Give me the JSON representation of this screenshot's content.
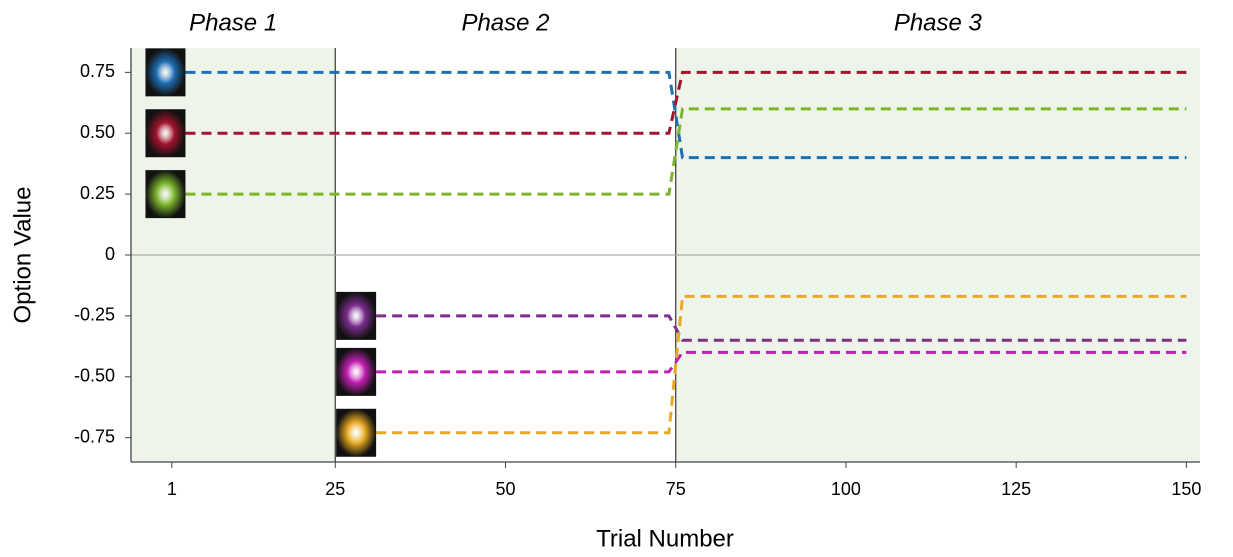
{
  "chart_data": {
    "type": "line",
    "x_label": "Trial Number",
    "y_label": "Option Value",
    "xlim": [
      -5,
      152
    ],
    "ylim": [
      -0.85,
      0.85
    ],
    "xticks": [
      1,
      25,
      50,
      75,
      100,
      125,
      150
    ],
    "yticks": [
      -0.75,
      {
        "value": -0.5,
        "label": "-0.50"
      },
      -0.25,
      0,
      0.25,
      {
        "value": 0.5,
        "label": "0.50"
      },
      0.75
    ],
    "phases": [
      {
        "name": "Phase 1",
        "start": -5,
        "end": 25,
        "shaded": true
      },
      {
        "name": "Phase 2",
        "start": 25,
        "end": 75,
        "shaded": false
      },
      {
        "name": "Phase 3",
        "start": 75,
        "end": 152,
        "shaded": true
      }
    ],
    "series": [
      {
        "color": "#1f6fb5",
        "x": [
          3,
          74,
          76,
          150
        ],
        "values": [
          0.75,
          0.75,
          0.4,
          0.4
        ]
      },
      {
        "color": "#a3142e",
        "x": [
          3,
          74,
          76,
          150
        ],
        "values": [
          0.5,
          0.5,
          0.75,
          0.75
        ]
      },
      {
        "color": "#7cb52e",
        "x": [
          3,
          74,
          76,
          150
        ],
        "values": [
          0.25,
          0.25,
          0.6,
          0.6
        ]
      },
      {
        "color": "#7d2e8f",
        "x": [
          31,
          74,
          76,
          150
        ],
        "values": [
          -0.25,
          -0.25,
          -0.35,
          -0.35
        ]
      },
      {
        "color": "#c21fb3",
        "x": [
          31,
          74,
          76,
          150
        ],
        "values": [
          -0.48,
          -0.48,
          -0.4,
          -0.4
        ]
      },
      {
        "color": "#e8aa22",
        "x": [
          31,
          74,
          76,
          150
        ],
        "values": [
          -0.73,
          -0.73,
          -0.17,
          -0.17
        ]
      }
    ]
  }
}
